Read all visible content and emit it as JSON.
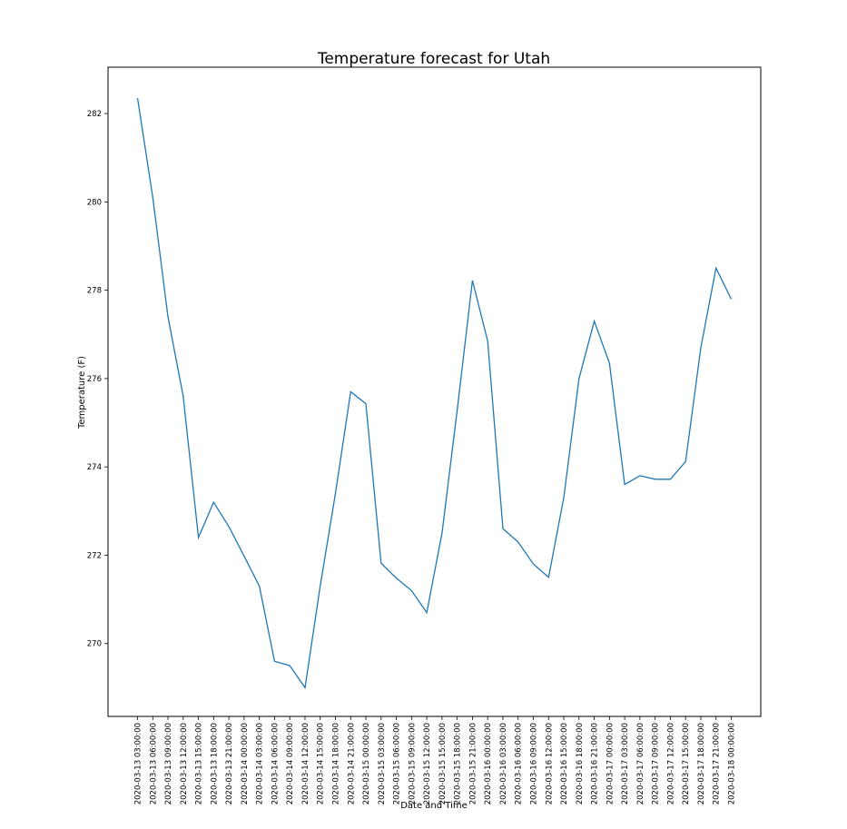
{
  "chart_data": {
    "type": "line",
    "title": "Temperature forecast for Utah",
    "xlabel": "Date and Time",
    "ylabel": "Temperature (F)",
    "x": [
      "2020-03-13 03:00:00",
      "2020-03-13 06:00:00",
      "2020-03-13 09:00:00",
      "2020-03-13 12:00:00",
      "2020-03-13 15:00:00",
      "2020-03-13 18:00:00",
      "2020-03-13 21:00:00",
      "2020-03-14 00:00:00",
      "2020-03-14 03:00:00",
      "2020-03-14 06:00:00",
      "2020-03-14 09:00:00",
      "2020-03-14 12:00:00",
      "2020-03-14 15:00:00",
      "2020-03-14 18:00:00",
      "2020-03-14 21:00:00",
      "2020-03-15 00:00:00",
      "2020-03-15 03:00:00",
      "2020-03-15 06:00:00",
      "2020-03-15 09:00:00",
      "2020-03-15 12:00:00",
      "2020-03-15 15:00:00",
      "2020-03-15 18:00:00",
      "2020-03-15 21:00:00",
      "2020-03-16 00:00:00",
      "2020-03-16 03:00:00",
      "2020-03-16 06:00:00",
      "2020-03-16 09:00:00",
      "2020-03-16 12:00:00",
      "2020-03-16 15:00:00",
      "2020-03-16 18:00:00",
      "2020-03-16 21:00:00",
      "2020-03-17 00:00:00",
      "2020-03-17 03:00:00",
      "2020-03-17 06:00:00",
      "2020-03-17 09:00:00",
      "2020-03-17 12:00:00",
      "2020-03-17 15:00:00",
      "2020-03-17 18:00:00",
      "2020-03-17 21:00:00",
      "2020-03-18 00:00:00"
    ],
    "series": [
      {
        "values": [
          282.35,
          280.1,
          277.4,
          275.6,
          272.4,
          273.2,
          272.65,
          271.98,
          271.3,
          269.6,
          269.5,
          269.0,
          271.3,
          273.4,
          275.7,
          275.43,
          271.82,
          271.48,
          271.2,
          270.7,
          272.5,
          275.3,
          278.22,
          276.85,
          272.6,
          272.3,
          271.8,
          271.5,
          273.3,
          276.0,
          277.3,
          276.35,
          273.6,
          273.8,
          273.72,
          273.72,
          274.12,
          276.7,
          278.5,
          277.8
        ],
        "color": "#1f77b4"
      }
    ],
    "yticks": [
      270,
      272,
      274,
      276,
      278,
      280,
      282
    ],
    "ylim": [
      268.35,
      283.05
    ],
    "grid": false
  }
}
